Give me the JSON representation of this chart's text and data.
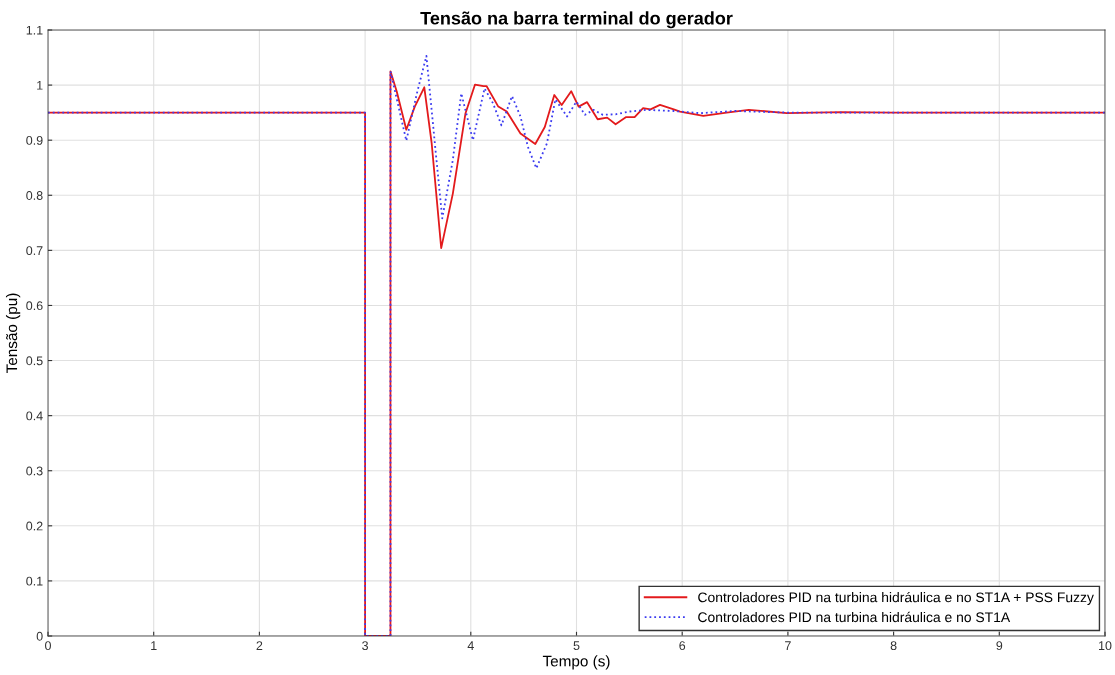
{
  "chart_data": {
    "type": "line",
    "title": "Tensão na barra terminal do gerador",
    "xlabel": "Tempo (s)",
    "ylabel": "Tensão (pu)",
    "xlim": [
      0,
      10
    ],
    "xticks": [
      0,
      1,
      2,
      3,
      4,
      5,
      6,
      7,
      8,
      9,
      10
    ],
    "ylim": [
      0,
      1.1
    ],
    "yticks": [
      0,
      0.1,
      0.2,
      0.3,
      0.4,
      0.5,
      0.6,
      0.7,
      0.8,
      0.9,
      1,
      1.1
    ],
    "grid": true,
    "legend": "bottom right",
    "marker": "none",
    "series": [
      {
        "name": "Controladores PID na turbina hidráulica e no ST1A + PSS Fuzzy",
        "color": "#e31a1c",
        "line_style": "solid",
        "x": [
          0,
          3.0,
          3.0,
          3.24,
          3.24,
          3.3,
          3.39,
          3.47,
          3.56,
          3.63,
          3.72,
          3.83,
          3.95,
          4.04,
          4.12,
          4.15,
          4.26,
          4.34,
          4.47,
          4.61,
          4.7,
          4.79,
          4.86,
          4.95,
          5.02,
          5.1,
          5.2,
          5.29,
          5.37,
          5.47,
          5.55,
          5.63,
          5.7,
          5.79,
          5.92,
          5.98,
          6.2,
          6.42,
          6.63,
          6.99,
          7.5,
          8,
          10
        ],
        "values": [
          0.95,
          0.95,
          0,
          0,
          1.025,
          0.988,
          0.919,
          0.961,
          0.996,
          0.894,
          0.704,
          0.803,
          0.949,
          1.001,
          0.998,
          0.998,
          0.961,
          0.952,
          0.912,
          0.893,
          0.924,
          0.982,
          0.964,
          0.989,
          0.961,
          0.969,
          0.938,
          0.941,
          0.929,
          0.942,
          0.942,
          0.958,
          0.956,
          0.964,
          0.956,
          0.952,
          0.944,
          0.95,
          0.955,
          0.949,
          0.951,
          0.95,
          0.95
        ]
      },
      {
        "name": "Controladores PID na turbina hidráulica e no ST1A",
        "color": "#3c3cf0",
        "line_style": "dotted",
        "x": [
          0,
          3.0,
          3.0,
          3.24,
          3.24,
          3.39,
          3.49,
          3.58,
          3.66,
          3.73,
          3.83,
          3.91,
          4.02,
          4.13,
          4.21,
          4.29,
          4.39,
          4.47,
          4.54,
          4.62,
          4.72,
          4.8,
          4.91,
          5.0,
          5.08,
          5.16,
          5.25,
          5.37,
          5.5,
          5.66,
          5.92,
          6.17,
          6.5,
          7,
          8,
          10
        ],
        "values": [
          0.95,
          0.95,
          0,
          0,
          1.025,
          0.899,
          0.985,
          1.053,
          0.894,
          0.758,
          0.864,
          0.985,
          0.9,
          0.994,
          0.967,
          0.927,
          0.98,
          0.943,
          0.888,
          0.849,
          0.894,
          0.974,
          0.943,
          0.97,
          0.946,
          0.955,
          0.946,
          0.947,
          0.952,
          0.955,
          0.953,
          0.949,
          0.953,
          0.95,
          0.95,
          0.95
        ]
      }
    ]
  }
}
